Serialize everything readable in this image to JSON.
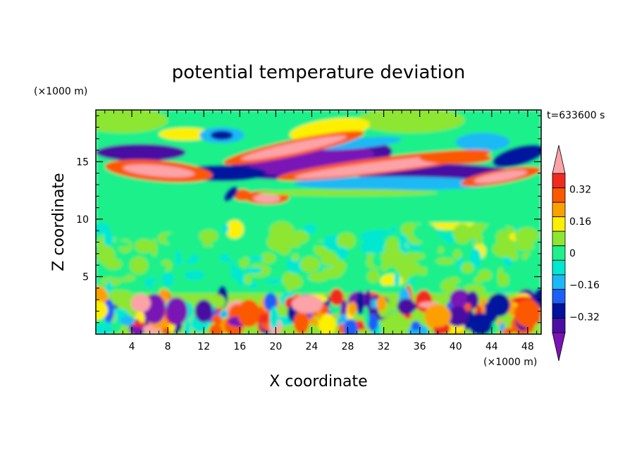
{
  "chart_data": {
    "type": "heatmap",
    "title": "potential temperature deviation",
    "xlabel": "X coordinate",
    "ylabel": "Z coordinate",
    "x_unit": "(×1000 m)",
    "y_unit": "(×1000 m)",
    "time_label": "t=633600 s",
    "xlim": [
      0,
      49.5
    ],
    "ylim": [
      0,
      19.5
    ],
    "x_ticks": [
      4,
      8,
      12,
      16,
      20,
      24,
      28,
      32,
      36,
      40,
      44,
      48
    ],
    "y_ticks": [
      5,
      10,
      15
    ],
    "colorbar": {
      "levels": [
        -0.48,
        -0.4,
        -0.32,
        -0.24,
        -0.16,
        -0.08,
        0,
        0.08,
        0.16,
        0.24,
        0.32,
        0.4,
        0.48
      ],
      "labels": [
        "0.32",
        "0.16",
        "0",
        "−0.16",
        "−0.32"
      ],
      "label_values": [
        0.32,
        0.16,
        0,
        -0.16,
        -0.32
      ],
      "colors": [
        "#7a12b5",
        "#4a0fa2",
        "#00139e",
        "#1e5ff7",
        "#1ab9f5",
        "#00e8d0",
        "#1ef08a",
        "#8ce632",
        "#fcf000",
        "#fca000",
        "#fc5800",
        "#f22a1e",
        "#fca3a8"
      ]
    },
    "features": [
      {
        "name": "upper-warm-band",
        "x": [
          10,
          34
        ],
        "z": [
          13.5,
          17
        ],
        "value": 0.5
      },
      {
        "name": "upper-cold-band",
        "x": [
          0,
          49.5
        ],
        "z": [
          12.5,
          16.5
        ],
        "value": -0.45
      },
      {
        "name": "mid-tropospheric-noise",
        "x": [
          0,
          49.5
        ],
        "z": [
          3.5,
          9
        ],
        "value": 0.05
      },
      {
        "name": "boundary-layer-eddies",
        "x": [
          0,
          49.5
        ],
        "z": [
          0,
          3.5
        ],
        "value": 0.3
      }
    ]
  }
}
